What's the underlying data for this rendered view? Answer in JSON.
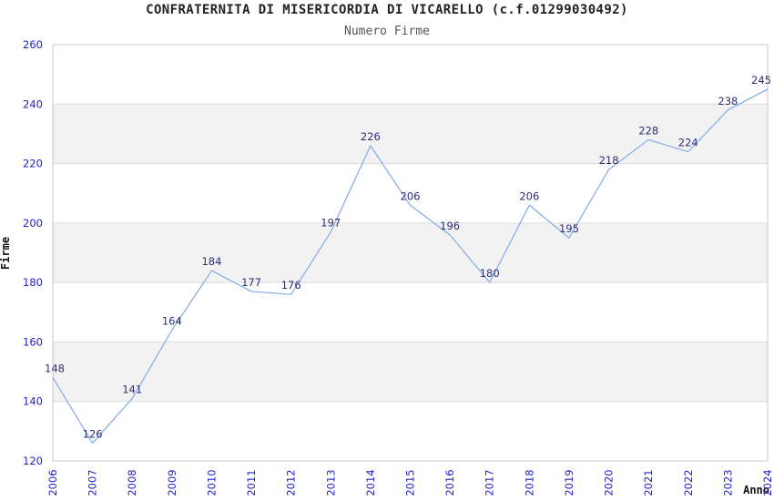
{
  "header": {
    "title": "CONFRATERNITA DI MISERICORDIA DI VICARELLO (c.f.01299030492)",
    "subtitle": "Numero Firme"
  },
  "chart_data": {
    "type": "line",
    "title": "CONFRATERNITA DI MISERICORDIA DI VICARELLO (c.f.01299030492)",
    "subtitle": "Numero Firme",
    "xlabel": "Anno",
    "ylabel": "Firme",
    "categories": [
      "2006",
      "2007",
      "2008",
      "2009",
      "2010",
      "2011",
      "2012",
      "2013",
      "2014",
      "2015",
      "2016",
      "2017",
      "2018",
      "2019",
      "2020",
      "2021",
      "2022",
      "2023",
      "2024"
    ],
    "values": [
      148,
      126,
      141,
      164,
      184,
      177,
      176,
      197,
      226,
      206,
      196,
      180,
      206,
      195,
      218,
      228,
      224,
      238,
      245
    ],
    "ylim": [
      120,
      260
    ],
    "ytick_step": 20,
    "grid": "horizontal-bands",
    "legend": "none",
    "colors": {
      "line": "#7FACE6",
      "tick_label": "#2222CC",
      "data_label": "#2D2D7A",
      "band_gray": "#F2F2F2",
      "band_white": "#FFFFFF",
      "gridline": "#DCDCDC",
      "plot_border": "#C8C8C8"
    }
  }
}
